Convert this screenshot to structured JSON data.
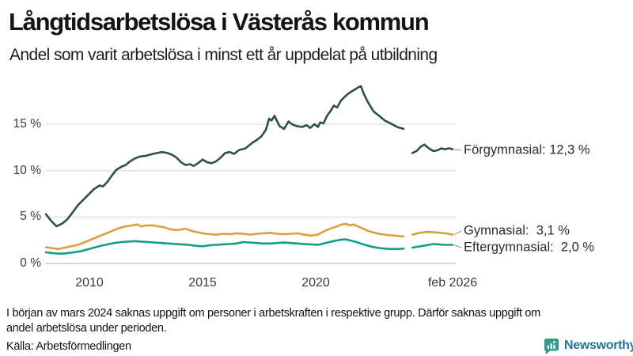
{
  "header": {
    "title": "Långtidsarbetslösa i Västerås kommun",
    "subtitle": "Andel som varit arbetslösa i minst ett år uppdelat på utbildning"
  },
  "chart_data": {
    "type": "line",
    "title": "Långtidsarbetslösa i Västerås kommun",
    "subtitle": "Andel som varit arbetslösa i minst ett år uppdelat på utbildning",
    "unit": "%",
    "grid": true,
    "x_range": [
      2008.05,
      2026.1
    ],
    "ylim": [
      0,
      19.5
    ],
    "gap_note": "data saknas från början av mars 2024 (linjerna har ett avbrott runt 2024)",
    "x_axis": {
      "ticks": [
        {
          "label": "2010",
          "year": 2010
        },
        {
          "label": "2015",
          "year": 2015
        },
        {
          "label": "2020",
          "year": 2020
        },
        {
          "label": "feb 2026",
          "year": 2026.08
        }
      ]
    },
    "y_axis": {
      "ticks": [
        {
          "label": "15 %",
          "value": 15
        },
        {
          "label": "10 %",
          "value": 10
        },
        {
          "label": "5 %",
          "value": 5
        },
        {
          "label": "0 %",
          "value": 0
        }
      ]
    },
    "series": [
      {
        "name": "Förgymnasial",
        "label": "Förgymnasial: 12,3 %",
        "last_value": "12,3 %",
        "color": "#2d5146",
        "segments": [
          [
            [
              2008.08,
              5.3
            ],
            [
              2008.3,
              4.6
            ],
            [
              2008.55,
              4.0
            ],
            [
              2008.8,
              4.3
            ],
            [
              2009.0,
              4.7
            ],
            [
              2009.2,
              5.3
            ],
            [
              2009.5,
              6.3
            ],
            [
              2009.75,
              6.9
            ],
            [
              2009.95,
              7.4
            ],
            [
              2010.2,
              8.0
            ],
            [
              2010.45,
              8.4
            ],
            [
              2010.6,
              8.3
            ],
            [
              2010.8,
              8.8
            ],
            [
              2011.0,
              9.5
            ],
            [
              2011.2,
              10.1
            ],
            [
              2011.4,
              10.4
            ],
            [
              2011.6,
              10.6
            ],
            [
              2011.8,
              11.0
            ],
            [
              2012.0,
              11.3
            ],
            [
              2012.2,
              11.5
            ],
            [
              2012.5,
              11.6
            ],
            [
              2012.8,
              11.8
            ],
            [
              2013.0,
              11.9
            ],
            [
              2013.2,
              12.0
            ],
            [
              2013.45,
              11.9
            ],
            [
              2013.65,
              11.7
            ],
            [
              2013.85,
              11.4
            ],
            [
              2014.05,
              10.9
            ],
            [
              2014.25,
              10.6
            ],
            [
              2014.45,
              10.7
            ],
            [
              2014.6,
              10.5
            ],
            [
              2014.8,
              10.8
            ],
            [
              2015.0,
              11.2
            ],
            [
              2015.2,
              10.9
            ],
            [
              2015.4,
              10.8
            ],
            [
              2015.6,
              11.0
            ],
            [
              2015.8,
              11.4
            ],
            [
              2016.0,
              11.9
            ],
            [
              2016.2,
              12.0
            ],
            [
              2016.4,
              11.8
            ],
            [
              2016.6,
              12.2
            ],
            [
              2016.9,
              12.4
            ],
            [
              2017.05,
              12.7
            ],
            [
              2017.2,
              13.0
            ],
            [
              2017.4,
              13.3
            ],
            [
              2017.6,
              13.7
            ],
            [
              2017.8,
              14.4
            ],
            [
              2017.94,
              15.6
            ],
            [
              2018.05,
              15.4
            ],
            [
              2018.18,
              15.9
            ],
            [
              2018.4,
              14.8
            ],
            [
              2018.6,
              14.5
            ],
            [
              2018.8,
              15.3
            ],
            [
              2018.95,
              15.0
            ],
            [
              2019.15,
              14.8
            ],
            [
              2019.4,
              14.7
            ],
            [
              2019.6,
              14.9
            ],
            [
              2019.75,
              14.6
            ],
            [
              2019.95,
              15.0
            ],
            [
              2020.1,
              14.7
            ],
            [
              2020.2,
              15.2
            ],
            [
              2020.35,
              15.1
            ],
            [
              2020.5,
              15.9
            ],
            [
              2020.65,
              16.4
            ],
            [
              2020.8,
              17.0
            ],
            [
              2020.95,
              16.8
            ],
            [
              2021.1,
              17.5
            ],
            [
              2021.3,
              18.0
            ],
            [
              2021.5,
              18.4
            ],
            [
              2021.7,
              18.7
            ],
            [
              2021.9,
              19.0
            ],
            [
              2022.0,
              19.1
            ],
            [
              2022.1,
              18.4
            ],
            [
              2022.3,
              17.4
            ],
            [
              2022.55,
              16.4
            ],
            [
              2022.8,
              15.9
            ],
            [
              2023.05,
              15.4
            ],
            [
              2023.3,
              15.1
            ],
            [
              2023.6,
              14.7
            ],
            [
              2023.88,
              14.5
            ]
          ],
          [
            [
              2024.27,
              11.9
            ],
            [
              2024.45,
              12.1
            ],
            [
              2024.65,
              12.6
            ],
            [
              2024.8,
              12.8
            ],
            [
              2025.0,
              12.4
            ],
            [
              2025.2,
              12.1
            ],
            [
              2025.4,
              12.2
            ],
            [
              2025.55,
              12.4
            ],
            [
              2025.7,
              12.3
            ],
            [
              2025.9,
              12.4
            ],
            [
              2026.05,
              12.3
            ]
          ]
        ]
      },
      {
        "name": "Gymnasial",
        "label": "Gymnasial:  3,1 %",
        "last_value": "3,1 %",
        "color": "#d7a13f",
        "segments": [
          [
            [
              2008.08,
              1.75
            ],
            [
              2008.35,
              1.65
            ],
            [
              2008.6,
              1.55
            ],
            [
              2008.9,
              1.7
            ],
            [
              2009.2,
              1.85
            ],
            [
              2009.5,
              2.0
            ],
            [
              2009.8,
              2.3
            ],
            [
              2010.1,
              2.6
            ],
            [
              2010.4,
              2.9
            ],
            [
              2010.7,
              3.2
            ],
            [
              2011.0,
              3.5
            ],
            [
              2011.3,
              3.8
            ],
            [
              2011.6,
              4.0
            ],
            [
              2011.9,
              4.1
            ],
            [
              2012.1,
              4.2
            ],
            [
              2012.3,
              4.0
            ],
            [
              2012.55,
              4.1
            ],
            [
              2012.8,
              4.1
            ],
            [
              2013.05,
              4.0
            ],
            [
              2013.3,
              3.9
            ],
            [
              2013.55,
              3.7
            ],
            [
              2013.8,
              3.6
            ],
            [
              2014.05,
              3.65
            ],
            [
              2014.25,
              3.75
            ],
            [
              2014.45,
              3.55
            ],
            [
              2014.7,
              3.4
            ],
            [
              2015.0,
              3.25
            ],
            [
              2015.3,
              3.15
            ],
            [
              2015.6,
              3.1
            ],
            [
              2015.9,
              3.2
            ],
            [
              2016.2,
              3.15
            ],
            [
              2016.5,
              3.25
            ],
            [
              2016.8,
              3.2
            ],
            [
              2017.1,
              3.1
            ],
            [
              2017.4,
              3.2
            ],
            [
              2017.7,
              3.25
            ],
            [
              2018.0,
              3.3
            ],
            [
              2018.3,
              3.2
            ],
            [
              2018.6,
              3.15
            ],
            [
              2018.9,
              3.2
            ],
            [
              2019.2,
              3.25
            ],
            [
              2019.5,
              3.1
            ],
            [
              2019.8,
              3.0
            ],
            [
              2020.1,
              3.1
            ],
            [
              2020.4,
              3.5
            ],
            [
              2020.7,
              3.8
            ],
            [
              2020.95,
              4.0
            ],
            [
              2021.15,
              4.2
            ],
            [
              2021.35,
              4.25
            ],
            [
              2021.5,
              4.1
            ],
            [
              2021.65,
              4.2
            ],
            [
              2021.85,
              4.0
            ],
            [
              2022.05,
              3.8
            ],
            [
              2022.3,
              3.5
            ],
            [
              2022.6,
              3.3
            ],
            [
              2022.9,
              3.15
            ],
            [
              2023.2,
              3.05
            ],
            [
              2023.5,
              3.0
            ],
            [
              2023.88,
              2.9
            ]
          ],
          [
            [
              2024.27,
              3.1
            ],
            [
              2024.5,
              3.25
            ],
            [
              2024.75,
              3.35
            ],
            [
              2025.0,
              3.4
            ],
            [
              2025.25,
              3.35
            ],
            [
              2025.5,
              3.3
            ],
            [
              2025.75,
              3.25
            ],
            [
              2026.05,
              3.1
            ]
          ]
        ]
      },
      {
        "name": "Eftergymnasial",
        "label": "Eftergymnasial:  2,0 %",
        "last_value": "2,0 %",
        "color": "#149e88",
        "segments": [
          [
            [
              2008.08,
              1.2
            ],
            [
              2008.4,
              1.1
            ],
            [
              2008.7,
              1.05
            ],
            [
              2009.0,
              1.1
            ],
            [
              2009.3,
              1.2
            ],
            [
              2009.6,
              1.3
            ],
            [
              2009.9,
              1.5
            ],
            [
              2010.2,
              1.7
            ],
            [
              2010.5,
              1.9
            ],
            [
              2010.8,
              2.05
            ],
            [
              2011.1,
              2.2
            ],
            [
              2011.4,
              2.3
            ],
            [
              2011.7,
              2.35
            ],
            [
              2012.0,
              2.4
            ],
            [
              2012.3,
              2.35
            ],
            [
              2012.6,
              2.3
            ],
            [
              2012.9,
              2.25
            ],
            [
              2013.2,
              2.2
            ],
            [
              2013.5,
              2.15
            ],
            [
              2013.8,
              2.1
            ],
            [
              2014.1,
              2.05
            ],
            [
              2014.4,
              2.0
            ],
            [
              2014.7,
              1.9
            ],
            [
              2015.0,
              1.85
            ],
            [
              2015.3,
              1.95
            ],
            [
              2015.6,
              2.0
            ],
            [
              2015.9,
              2.05
            ],
            [
              2016.2,
              2.1
            ],
            [
              2016.5,
              2.15
            ],
            [
              2016.8,
              2.3
            ],
            [
              2017.1,
              2.25
            ],
            [
              2017.4,
              2.2
            ],
            [
              2017.7,
              2.15
            ],
            [
              2018.0,
              2.15
            ],
            [
              2018.3,
              2.2
            ],
            [
              2018.6,
              2.25
            ],
            [
              2018.9,
              2.2
            ],
            [
              2019.2,
              2.15
            ],
            [
              2019.5,
              2.1
            ],
            [
              2019.8,
              2.05
            ],
            [
              2020.1,
              2.0
            ],
            [
              2020.35,
              2.15
            ],
            [
              2020.6,
              2.3
            ],
            [
              2020.85,
              2.45
            ],
            [
              2021.1,
              2.55
            ],
            [
              2021.3,
              2.6
            ],
            [
              2021.5,
              2.5
            ],
            [
              2021.8,
              2.3
            ],
            [
              2022.1,
              2.05
            ],
            [
              2022.4,
              1.85
            ],
            [
              2022.7,
              1.7
            ],
            [
              2023.0,
              1.6
            ],
            [
              2023.3,
              1.55
            ],
            [
              2023.6,
              1.55
            ],
            [
              2023.88,
              1.6
            ]
          ],
          [
            [
              2024.27,
              1.7
            ],
            [
              2024.5,
              1.8
            ],
            [
              2024.75,
              1.9
            ],
            [
              2025.0,
              2.0
            ],
            [
              2025.2,
              2.1
            ],
            [
              2025.45,
              2.05
            ],
            [
              2025.7,
              2.0
            ],
            [
              2026.05,
              2.0
            ]
          ]
        ]
      }
    ],
    "colors": {
      "grid": "#e1e2e6",
      "baseline": "#c9ccd0",
      "connector": "#9a9a9a"
    }
  },
  "footnote": {
    "lines": [
      "I början av mars 2024 saknas uppgift om personer i arbetskraften i respektive grupp. Därför saknas uppgift om",
      "andel arbetslösa under perioden."
    ]
  },
  "source": {
    "label": "Källa: Arbetsförmedlingen"
  },
  "branding": {
    "name": "Newsworthy",
    "icon_color": "#38998b",
    "text_color": "#20798c"
  }
}
